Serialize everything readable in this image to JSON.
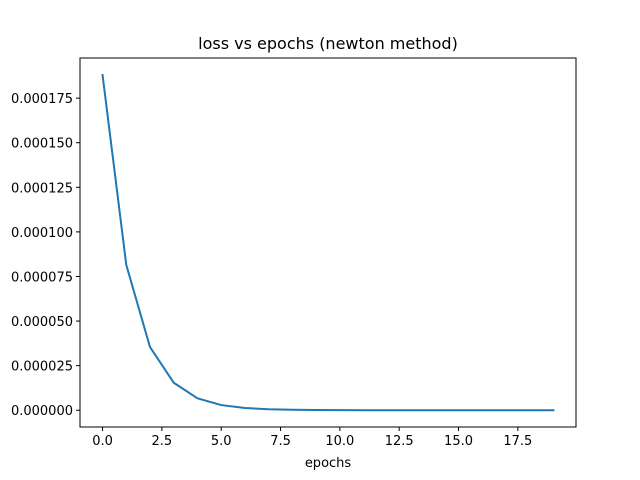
{
  "chart_data": {
    "type": "line",
    "title": "loss vs epochs (newton method)",
    "xlabel": "epochs",
    "ylabel": "",
    "xlim": [
      -0.95,
      19.95
    ],
    "ylim": [
      -9.4e-06,
      0.0001975
    ],
    "xticks": [
      0.0,
      2.5,
      5.0,
      7.5,
      10.0,
      12.5,
      15.0,
      17.5
    ],
    "xtick_labels": [
      "0.0",
      "2.5",
      "5.0",
      "7.5",
      "10.0",
      "12.5",
      "15.0",
      "17.5"
    ],
    "yticks": [
      0.0,
      2.5e-05,
      5e-05,
      7.5e-05,
      0.0001,
      0.000125,
      0.00015,
      0.000175
    ],
    "ytick_labels": [
      "0.000000",
      "0.000025",
      "0.000050",
      "0.000075",
      "0.000100",
      "0.000125",
      "0.000150",
      "0.000175"
    ],
    "grid": false,
    "legend": "none",
    "series": [
      {
        "color": "#1f77b4",
        "x": [
          0,
          1,
          2,
          3,
          4,
          5,
          6,
          7,
          8,
          9,
          10,
          11,
          12,
          13,
          14,
          15,
          16,
          17,
          18,
          19
        ],
        "y": [
          0.000188,
          8.15e-05,
          3.54e-05,
          1.54e-05,
          6.7e-06,
          2.9e-06,
          1.27e-06,
          5.5e-07,
          2.4e-07,
          1.04e-07,
          4.5e-08,
          2e-08,
          8.5e-09,
          3.7e-09,
          1.6e-09,
          7e-10,
          3e-10,
          1.3e-10,
          6e-11,
          2e-11
        ]
      }
    ]
  }
}
